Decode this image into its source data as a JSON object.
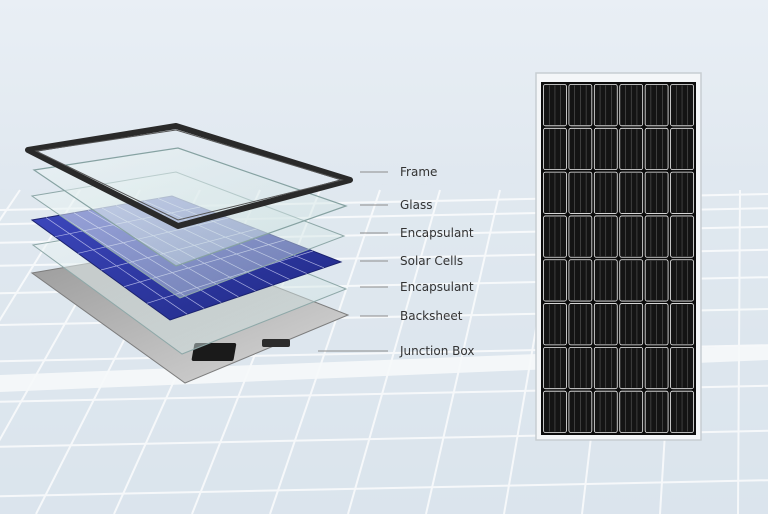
{
  "layers": [
    {
      "label": "Frame"
    },
    {
      "label": "Glass"
    },
    {
      "label": "Encapsulant"
    },
    {
      "label": "Solar Cells"
    },
    {
      "label": "Encapsulant"
    },
    {
      "label": "Backsheet"
    },
    {
      "label": "Junction Box"
    }
  ],
  "colors": {
    "cell_blue": "#2e3aa8",
    "frame_dark": "#2a2a2a",
    "panel_black": "#0c0c0c",
    "leader_line": "#8c8c8c"
  },
  "panel": {
    "cell_columns": 6,
    "cell_rows": 8
  }
}
